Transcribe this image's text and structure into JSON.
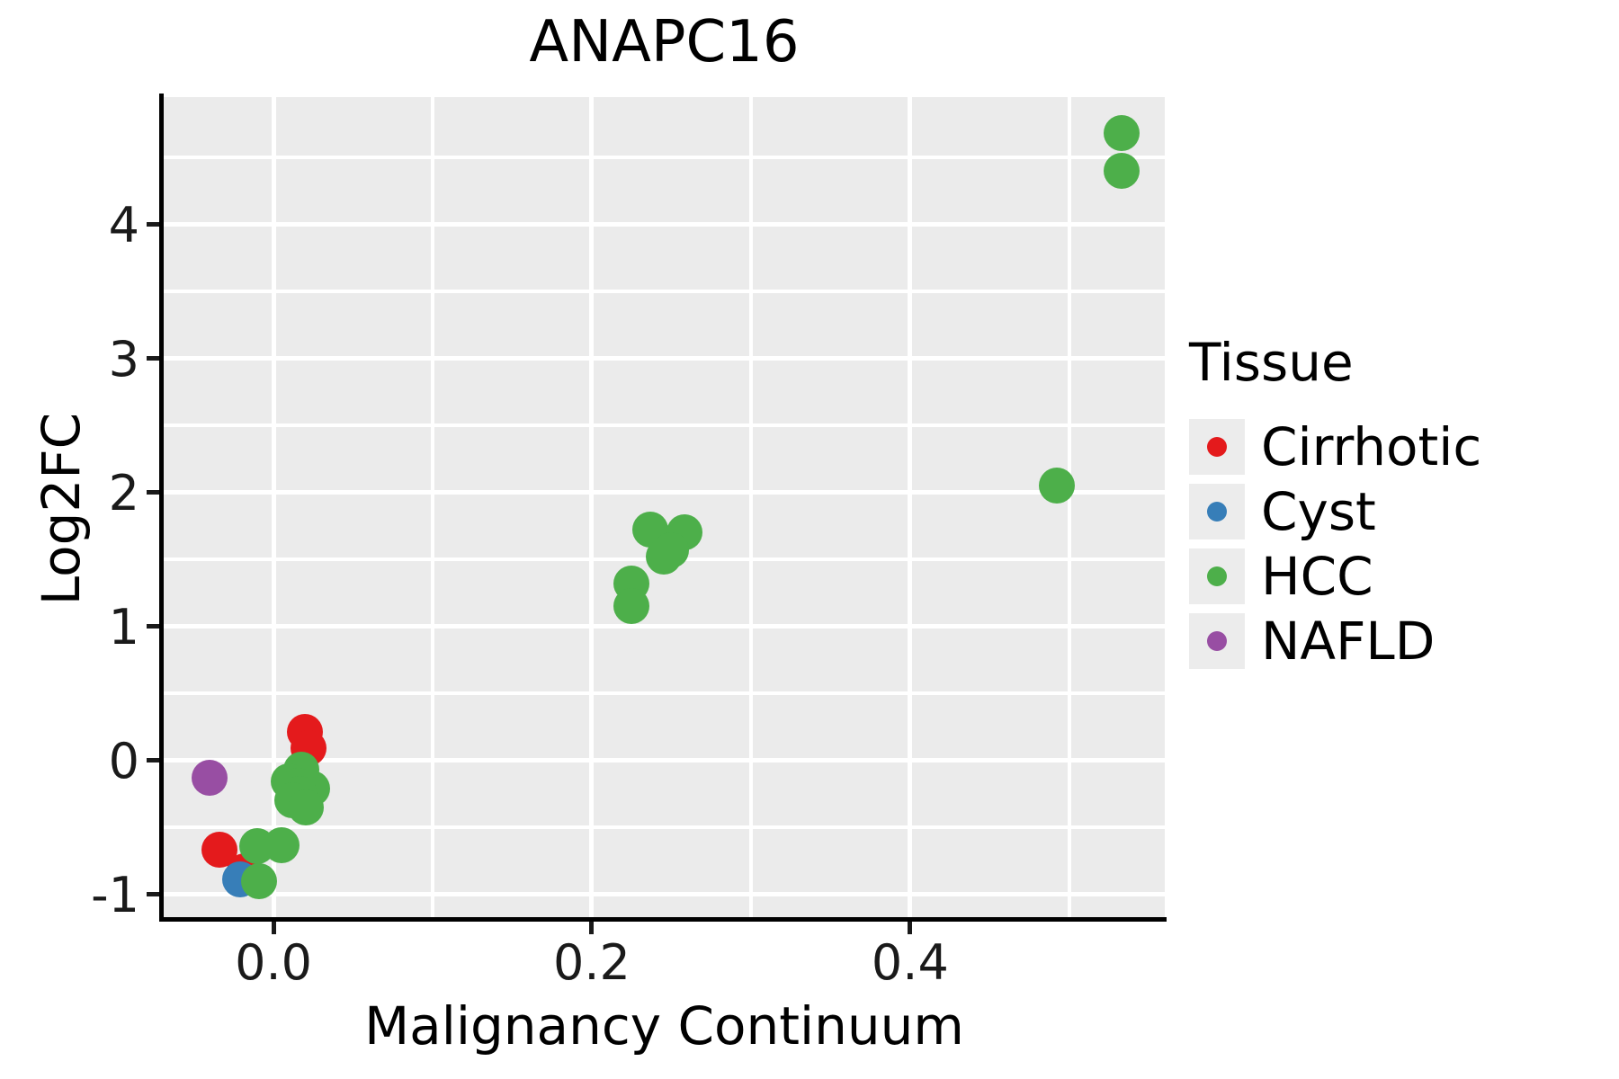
{
  "title": "ANAPC16",
  "chart_data": {
    "type": "scatter",
    "title": "ANAPC16",
    "xlabel": "Malignancy Continuum",
    "ylabel": "Log2FC",
    "xlim": [
      -0.069,
      0.56
    ],
    "ylim": [
      -1.17,
      4.95
    ],
    "x_major_ticks": [
      0.0,
      0.2,
      0.4
    ],
    "x_tick_labels": [
      "0.0",
      "0.2",
      "0.4"
    ],
    "x_minor_ticks": [
      0.1,
      0.3,
      0.5
    ],
    "y_major_ticks": [
      4,
      3,
      2,
      1,
      0,
      -1
    ],
    "y_tick_labels": [
      "4",
      "3",
      "2",
      "1",
      "0",
      "-1"
    ],
    "y_minor_ticks": [
      4.5,
      3.5,
      2.5,
      1.5,
      0.5,
      -0.5
    ],
    "grid": "on",
    "panel_bg": "#EBEBEB",
    "grid_color": "#FFFFFF",
    "legend": {
      "title": "Tissue",
      "position": "right",
      "entries": [
        {
          "label": "Cirrhotic",
          "color": "#E41A1C"
        },
        {
          "label": "Cyst",
          "color": "#377EB8"
        },
        {
          "label": "HCC",
          "color": "#4DAF4A"
        },
        {
          "label": "NAFLD",
          "color": "#984EA3"
        }
      ]
    },
    "series": [
      {
        "name": "Cirrhotic",
        "color": "#E41A1C",
        "points": [
          [
            0.02,
            0.21
          ],
          [
            0.022,
            0.09
          ],
          [
            -0.034,
            -0.67
          ],
          [
            -0.018,
            -0.83
          ]
        ]
      },
      {
        "name": "Cyst",
        "color": "#377EB8",
        "points": [
          [
            -0.021,
            -0.89
          ]
        ]
      },
      {
        "name": "HCC",
        "color": "#4DAF4A",
        "points": [
          [
            0.533,
            4.68
          ],
          [
            0.533,
            4.4
          ],
          [
            0.492,
            2.05
          ],
          [
            0.237,
            1.72
          ],
          [
            0.258,
            1.7
          ],
          [
            0.25,
            1.57
          ],
          [
            0.245,
            1.52
          ],
          [
            0.225,
            1.32
          ],
          [
            0.225,
            1.15
          ],
          [
            0.0175,
            -0.07
          ],
          [
            0.0096,
            -0.16
          ],
          [
            0.024,
            -0.21
          ],
          [
            0.015,
            -0.19
          ],
          [
            0.0164,
            -0.25
          ],
          [
            0.0119,
            -0.3
          ],
          [
            0.0203,
            -0.35
          ],
          [
            -0.01,
            -0.64
          ],
          [
            0.005,
            -0.63
          ],
          [
            -0.009,
            -0.9
          ]
        ]
      },
      {
        "name": "NAFLD",
        "color": "#984EA3",
        "points": [
          [
            -0.04,
            -0.13
          ]
        ]
      }
    ]
  }
}
